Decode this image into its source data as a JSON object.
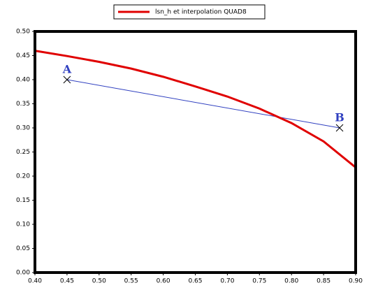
{
  "chart_data": {
    "type": "line",
    "series": [
      {
        "name": "lsn_h et interpolation QUAD8",
        "color": "#e00000",
        "x": [
          0.4,
          0.45,
          0.5,
          0.55,
          0.6,
          0.65,
          0.7,
          0.75,
          0.8,
          0.85,
          0.9
        ],
        "values": [
          0.46,
          0.449,
          0.437,
          0.423,
          0.406,
          0.386,
          0.365,
          0.34,
          0.31,
          0.272,
          0.218
        ]
      }
    ],
    "segment": {
      "color": "#3040c0",
      "x": [
        0.45,
        0.875
      ],
      "values": [
        0.4,
        0.3
      ],
      "labels": [
        "A",
        "B"
      ]
    },
    "xlim": [
      0.4,
      0.9
    ],
    "ylim": [
      0.0,
      0.5
    ],
    "xticks": [
      {
        "value": 0.4,
        "label": "0.40"
      },
      {
        "value": 0.45,
        "label": "0.45"
      },
      {
        "value": 0.5,
        "label": "0.50"
      },
      {
        "value": 0.55,
        "label": "0.55"
      },
      {
        "value": 0.6,
        "label": "0.60"
      },
      {
        "value": 0.65,
        "label": "0.65"
      },
      {
        "value": 0.7,
        "label": "0.70"
      },
      {
        "value": 0.75,
        "label": "0.75"
      },
      {
        "value": 0.8,
        "label": "0.80"
      },
      {
        "value": 0.85,
        "label": "0.85"
      },
      {
        "value": 0.9,
        "label": "0.90"
      }
    ],
    "yticks": [
      {
        "value": 0.0,
        "label": "0.00"
      },
      {
        "value": 0.05,
        "label": "0.05"
      },
      {
        "value": 0.1,
        "label": "0.10"
      },
      {
        "value": 0.15,
        "label": "0.15"
      },
      {
        "value": 0.2,
        "label": "0.20"
      },
      {
        "value": 0.25,
        "label": "0.25"
      },
      {
        "value": 0.3,
        "label": "0.30"
      },
      {
        "value": 0.35,
        "label": "0.35"
      },
      {
        "value": 0.4,
        "label": "0.40"
      },
      {
        "value": 0.45,
        "label": "0.45"
      },
      {
        "value": 0.5,
        "label": "0.50"
      }
    ]
  }
}
